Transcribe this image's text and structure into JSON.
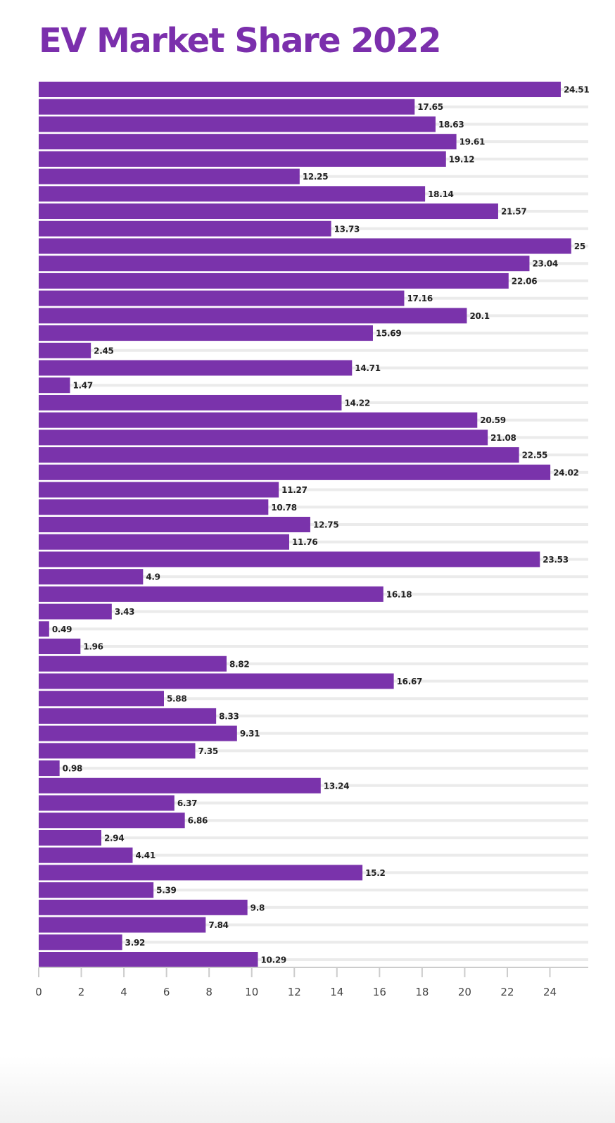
{
  "title": "EV Market Share 2022",
  "colors": {
    "accent": "#7b2fac",
    "bar": "#7a33ab",
    "grid": "#ebebeb",
    "axis": "#cccccc"
  },
  "chart_data": {
    "type": "bar",
    "orientation": "horizontal",
    "title": "EV Market Share 2022",
    "xlabel": "",
    "ylabel": "",
    "xlim": [
      0,
      25.8
    ],
    "xticks": [
      0,
      2,
      4,
      6,
      8,
      10,
      12,
      14,
      16,
      18,
      20,
      22,
      24
    ],
    "grid": true,
    "legend": "none",
    "values": [
      24.51,
      17.65,
      18.63,
      19.61,
      19.12,
      12.25,
      18.14,
      21.57,
      13.73,
      25,
      23.04,
      22.06,
      17.16,
      20.1,
      15.69,
      2.45,
      14.71,
      1.47,
      14.22,
      20.59,
      21.08,
      22.55,
      24.02,
      11.27,
      10.78,
      12.75,
      11.76,
      23.53,
      4.9,
      16.18,
      3.43,
      0.49,
      1.96,
      8.82,
      16.67,
      5.88,
      8.33,
      9.31,
      7.35,
      0.98,
      13.24,
      6.37,
      6.86,
      2.94,
      4.41,
      15.2,
      5.39,
      9.8,
      7.84,
      3.92,
      10.29
    ]
  }
}
